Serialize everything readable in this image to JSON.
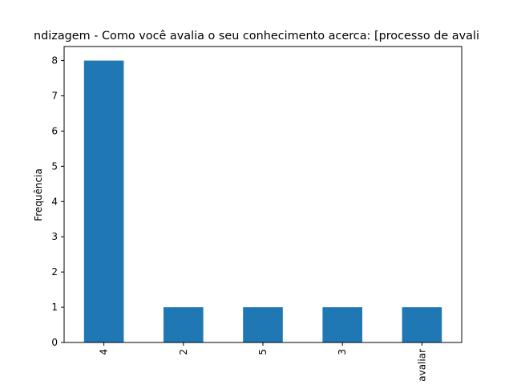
{
  "chart_data": {
    "type": "bar",
    "title": "ndizagem - Como você avalia o seu conhecimento acerca: [processo de avali",
    "xlabel": "",
    "ylabel": "Frequência",
    "categories": [
      "4",
      "2",
      "5",
      "3",
      "avaliar"
    ],
    "values": [
      8,
      1,
      1,
      1,
      1
    ],
    "ylim": [
      0,
      8.4
    ],
    "yticks": [
      0,
      1,
      2,
      3,
      4,
      5,
      6,
      7,
      8
    ],
    "bar_color": "#1f77b4",
    "grid": false,
    "legend": "none"
  }
}
